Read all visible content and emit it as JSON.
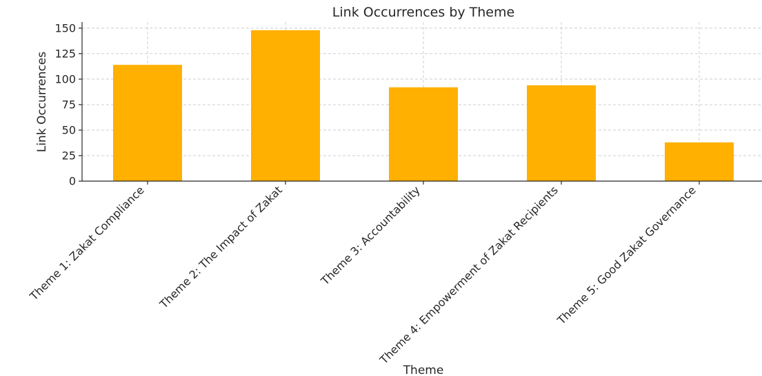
{
  "chart_data": {
    "type": "bar",
    "title": "Link Occurrences by Theme",
    "xlabel": "Theme",
    "ylabel": "Link Occurrences",
    "categories": [
      "Theme 1: Zakat Compliance",
      "Theme 2: The Impact of Zakat",
      "Theme 3: Accountability",
      "Theme 4: Empowerment of Zakat Recipients",
      "Theme 5: Good Zakat Governance"
    ],
    "values": [
      114,
      148,
      92,
      94,
      38
    ],
    "ylim": [
      0,
      156
    ],
    "yticks": [
      0,
      25,
      50,
      75,
      100,
      125,
      150
    ],
    "grid": true,
    "bar_color": "#FFB000"
  }
}
